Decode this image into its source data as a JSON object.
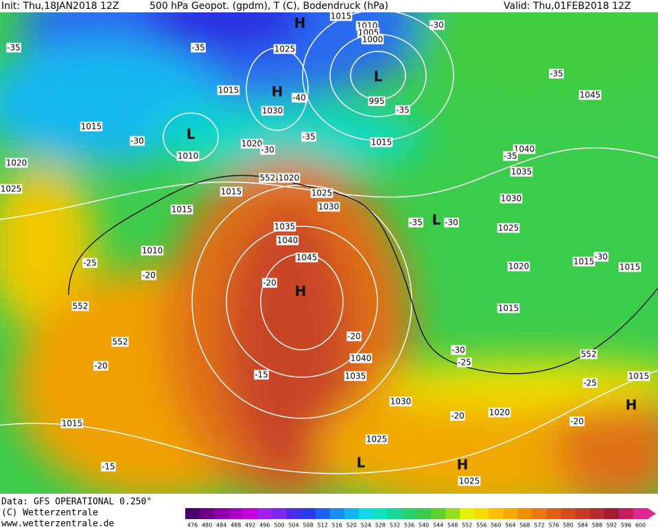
{
  "header": {
    "init": "Init: Thu,18JAN2018 12Z",
    "title": "500 hPa Geopot. (gpdm), T (C), Bodendruck (hPa)",
    "valid": "Valid: Thu,01FEB2018 12Z"
  },
  "footer": {
    "data": "Data: GFS OPERATIONAL 0.250°",
    "copyright": "(C) Wetterzentrale",
    "url": "www.wetterzentrale.de"
  },
  "colorbar": {
    "values": [
      476,
      480,
      484,
      488,
      492,
      496,
      500,
      504,
      508,
      512,
      516,
      520,
      524,
      528,
      532,
      536,
      540,
      544,
      548,
      552,
      556,
      560,
      564,
      568,
      572,
      576,
      580,
      584,
      588,
      592,
      596,
      600
    ],
    "colors": [
      "#4b0068",
      "#6a0088",
      "#8a00a8",
      "#a800c8",
      "#c400e0",
      "#a020f0",
      "#7a28f0",
      "#4c2ce8",
      "#2a3ae8",
      "#1e60f0",
      "#1a8cf4",
      "#12b4f4",
      "#10d8e8",
      "#10e0c0",
      "#18d898",
      "#28d070",
      "#3cc848",
      "#60d030",
      "#98dc20",
      "#e8f000",
      "#f8d800",
      "#f8c000",
      "#f4a800",
      "#f09000",
      "#e87810",
      "#e06018",
      "#d44c20",
      "#c43c28",
      "#b42c30",
      "#a01c30",
      "#c02060",
      "#e02890"
    ]
  },
  "map_labels": [
    "H",
    "1015",
    "1010",
    "1005",
    "1000",
    "-30",
    "-35",
    "-35",
    "1025",
    "L",
    "-35",
    "1015",
    "H",
    "-40",
    "1045",
    "995",
    "1030",
    "-35",
    "1015",
    "L",
    "-30",
    "-35",
    "1020",
    "-30",
    "1015",
    "1040",
    "1010",
    "-35",
    "1020",
    "1035",
    "552",
    "1020",
    "1025",
    "1015",
    "1025",
    "1030",
    "1030",
    "1015",
    "-35",
    "L",
    "-30",
    "1035",
    "1025",
    "1040",
    "1010",
    "1045",
    "-25",
    "1020",
    "1015",
    "-30",
    "1015",
    "-20",
    "-20",
    "H",
    "552",
    "1015",
    "552",
    "-20",
    "-30",
    "1040",
    "-25",
    "552",
    "-20",
    "1035",
    "-15",
    "1015",
    "-25",
    "1030",
    "H",
    "-20",
    "1020",
    "-20",
    "1015",
    "1025",
    "L",
    "H",
    "-15",
    "1025"
  ]
}
